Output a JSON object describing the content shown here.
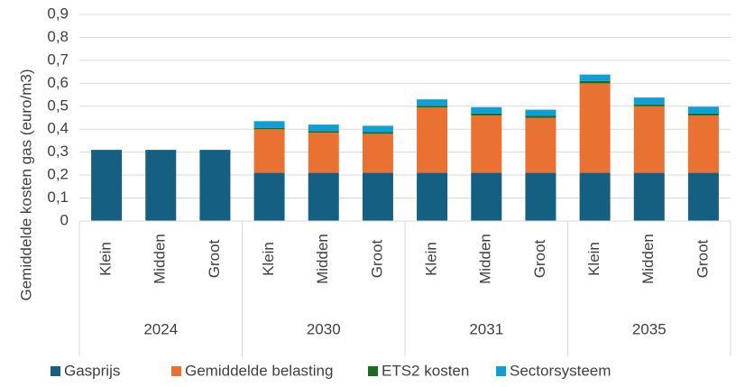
{
  "chart_data": {
    "type": "stacked_bar",
    "y_label": "Gemiddelde kosten gas (euro/m3)",
    "categories": [
      "Klein",
      "Midden",
      "Groot",
      "Klein",
      "Midden",
      "Groot",
      "Klein",
      "Midden",
      "Groot",
      "Klein",
      "Midden",
      "Groot"
    ],
    "category_groups": [
      "2024",
      "2030",
      "2031",
      "2035"
    ],
    "series": [
      {
        "name": "Gasprijs",
        "color": "#156082",
        "values": [
          0.31,
          0.31,
          0.31,
          0.21,
          0.21,
          0.21,
          0.21,
          0.21,
          0.21,
          0.21,
          0.21,
          0.21
        ]
      },
      {
        "name": "Gemiddelde belasting",
        "color": "#e97132",
        "values": [
          0,
          0,
          0,
          0.19,
          0.175,
          0.17,
          0.285,
          0.25,
          0.24,
          0.39,
          0.29,
          0.25
        ]
      },
      {
        "name": "ETS2 kosten",
        "color": "#196b24",
        "values": [
          0,
          0,
          0,
          0.005,
          0.007,
          0.007,
          0.007,
          0.008,
          0.008,
          0.01,
          0.008,
          0.008
        ]
      },
      {
        "name": "Sectorsysteem",
        "color": "#0f9ed5",
        "values": [
          0,
          0,
          0,
          0.03,
          0.028,
          0.028,
          0.028,
          0.028,
          0.027,
          0.028,
          0.03,
          0.03
        ]
      }
    ],
    "ylim": [
      0,
      0.9
    ],
    "yticks": [
      0,
      {
        "value": 0.1,
        "label": "0,1"
      },
      {
        "value": 0.2,
        "label": "0,2"
      },
      {
        "value": 0.3,
        "label": "0,3"
      },
      {
        "value": 0.4,
        "label": "0,4"
      },
      {
        "value": 0.5,
        "label": "0,5"
      },
      {
        "value": 0.6,
        "label": "0,6"
      },
      {
        "value": 0.7,
        "label": "0,7"
      },
      {
        "value": 0.8,
        "label": "0,8"
      },
      {
        "value": 0.9,
        "label": "0,9"
      }
    ],
    "grid": true,
    "legend": "bottom"
  }
}
